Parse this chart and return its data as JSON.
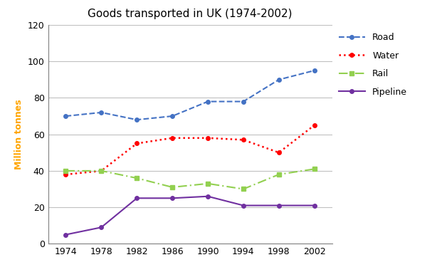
{
  "title": "Goods transported in UK (1974-2002)",
  "ylabel": "Million tonnes",
  "years": [
    1974,
    1978,
    1982,
    1986,
    1990,
    1994,
    1998,
    2002
  ],
  "road": [
    70,
    72,
    68,
    70,
    78,
    78,
    90,
    95
  ],
  "water": [
    38,
    40,
    55,
    58,
    58,
    57,
    50,
    65
  ],
  "rail": [
    40,
    40,
    36,
    31,
    33,
    30,
    38,
    41
  ],
  "pipeline": [
    5,
    9,
    25,
    25,
    26,
    21,
    21,
    21
  ],
  "road_color": "#4472C4",
  "water_color": "#FF0000",
  "rail_color": "#92D050",
  "pipeline_color": "#7030A0",
  "ylabel_color": "#FFA500",
  "ylim": [
    0,
    120
  ],
  "yticks": [
    0,
    20,
    40,
    60,
    80,
    100,
    120
  ],
  "title_fontsize": 11,
  "label_fontsize": 9,
  "tick_fontsize": 9,
  "legend_fontsize": 9
}
